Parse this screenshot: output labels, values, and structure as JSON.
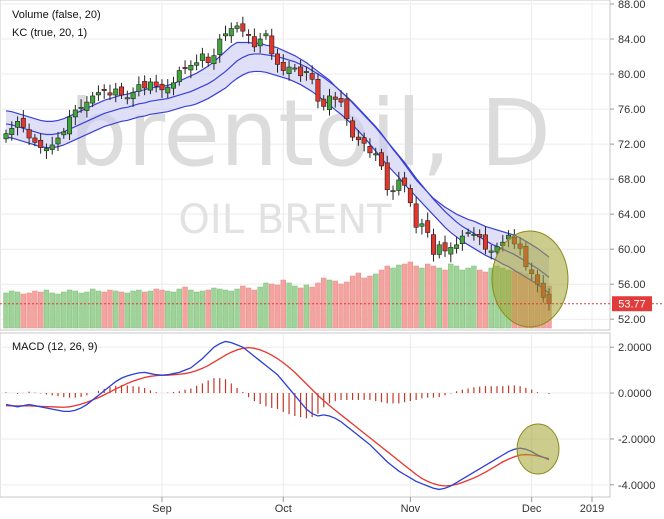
{
  "chart_data": [
    {
      "type": "candlestick",
      "watermark": {
        "symbol": "brentoil, D",
        "name": "OIL BRENT"
      },
      "legend": [
        "Volume (false, 20)",
        "KC (true, 20, 1)"
      ],
      "ylim": [
        51,
        88
      ],
      "y_ticks": [
        52,
        56,
        60,
        64,
        68,
        72,
        76,
        80,
        84,
        88
      ],
      "y_tick_labels": [
        "52.00",
        "56.00",
        "60.00",
        "64.00",
        "68.00",
        "72.00",
        "76.00",
        "80.00",
        "84.00",
        "88.00"
      ],
      "last_price": "53.77",
      "x_labels": [
        "Sep",
        "Oct",
        "Nov",
        "Dec",
        "2019"
      ],
      "close": [
        73.2,
        73.8,
        74.6,
        73.9,
        72.7,
        72.2,
        71.6,
        71.5,
        71.9,
        72.7,
        73.4,
        75.1,
        75.9,
        76.2,
        76.8,
        77.5,
        77.9,
        78.1,
        77.6,
        78.3,
        77.6,
        77.3,
        77.9,
        78.8,
        78.4,
        79.1,
        78.6,
        78.2,
        78.5,
        79.0,
        80.4,
        80.7,
        81.0,
        81.3,
        82.3,
        81.3,
        82.1,
        84.0,
        84.6,
        85.2,
        85.5,
        84.9,
        84.4,
        83.1,
        84.0,
        84.6,
        82.3,
        81.1,
        80.4,
        80.8,
        80.7,
        79.8,
        80.3,
        79.4,
        76.9,
        76.3,
        77.5,
        77.1,
        76.8,
        74.9,
        72.8,
        72.5,
        72.1,
        71.0,
        70.9,
        69.5,
        66.8,
        66.7,
        67.9,
        67.3,
        65.3,
        62.5,
        62.9,
        61.9,
        59.4,
        60.5,
        59.8,
        60.2,
        60.5,
        61.5,
        61.9,
        61.7,
        61.4,
        60.0,
        59.8,
        60.3,
        60.8,
        61.6,
        60.6,
        60.1,
        58.0,
        57.2,
        56.0,
        54.5,
        53.77
      ],
      "volume_levels": [
        0.35,
        0.37,
        0.36,
        0.34,
        0.35,
        0.37,
        0.36,
        0.38,
        0.35,
        0.34,
        0.36,
        0.38,
        0.37,
        0.35,
        0.36,
        0.39,
        0.37,
        0.36,
        0.38,
        0.37,
        0.36,
        0.35,
        0.37,
        0.38,
        0.36,
        0.37,
        0.39,
        0.38,
        0.37,
        0.36,
        0.39,
        0.41,
        0.38,
        0.36,
        0.37,
        0.38,
        0.4,
        0.39,
        0.38,
        0.37,
        0.39,
        0.42,
        0.4,
        0.38,
        0.41,
        0.45,
        0.44,
        0.43,
        0.48,
        0.45,
        0.42,
        0.4,
        0.43,
        0.41,
        0.45,
        0.5,
        0.48,
        0.47,
        0.44,
        0.46,
        0.52,
        0.55,
        0.5,
        0.52,
        0.54,
        0.58,
        0.62,
        0.6,
        0.63,
        0.64,
        0.66,
        0.62,
        0.6,
        0.64,
        0.62,
        0.6,
        0.58,
        0.64,
        0.62,
        0.58,
        0.6,
        0.62,
        0.58,
        0.56,
        0.6,
        0.62,
        0.6,
        0.58,
        0.57,
        0.56,
        0.54,
        0.5,
        0.47,
        0.45,
        0.42
      ],
      "kc_mid": [
        74.3,
        74.2,
        74.0,
        73.8,
        73.6,
        73.4,
        73.2,
        73.1,
        73.1,
        73.2,
        73.4,
        73.7,
        74.0,
        74.3,
        74.6,
        74.9,
        75.2,
        75.5,
        75.7,
        75.9,
        76.1,
        76.2,
        76.4,
        76.6,
        76.7,
        76.9,
        77.0,
        77.1,
        77.2,
        77.4,
        77.6,
        77.8,
        78.0,
        78.3,
        78.6,
        78.9,
        79.3,
        79.8,
        80.3,
        80.9,
        81.5,
        81.9,
        82.2,
        82.3,
        82.3,
        82.2,
        82.1,
        82.0,
        81.8,
        81.6,
        81.4,
        81.1,
        80.8,
        80.4,
        80.0,
        79.6,
        79.1,
        78.6,
        78.0,
        77.4,
        76.7,
        76.0,
        75.3,
        74.6,
        73.9,
        73.1,
        72.3,
        71.5,
        70.7,
        69.9,
        69.0,
        68.1,
        67.3,
        66.5,
        65.7,
        65.0,
        64.3,
        63.7,
        63.1,
        62.6,
        62.2,
        61.8,
        61.4,
        61.0,
        60.6,
        60.3,
        60.0,
        59.7,
        59.4,
        59.0,
        58.6,
        58.2,
        57.8,
        57.3,
        56.8
      ],
      "kc_upper": [
        75.8,
        75.7,
        75.5,
        75.3,
        75.1,
        74.9,
        74.7,
        74.6,
        74.6,
        74.7,
        74.9,
        75.2,
        75.5,
        75.8,
        76.1,
        76.4,
        76.7,
        77.0,
        77.2,
        77.4,
        77.6,
        77.7,
        77.9,
        78.1,
        78.2,
        78.4,
        78.5,
        78.6,
        78.7,
        78.9,
        79.2,
        79.5,
        79.8,
        80.1,
        80.5,
        80.9,
        81.4,
        82.0,
        82.6,
        83.2,
        83.6,
        83.6,
        83.6,
        83.5,
        83.5,
        83.3,
        83.2,
        83.0,
        82.7,
        82.4,
        82.1,
        81.7,
        81.3,
        80.8,
        80.3,
        79.8,
        79.3,
        78.6,
        78.0,
        77.4,
        76.8,
        76.1,
        75.4,
        74.7,
        74.0,
        73.2,
        72.3,
        71.4,
        70.6,
        69.7,
        68.8,
        67.9,
        67.2,
        66.5,
        65.8,
        65.3,
        64.8,
        64.4,
        64.0,
        63.7,
        63.4,
        63.2,
        62.9,
        62.6,
        62.4,
        62.2,
        62.0,
        61.8,
        61.6,
        61.3,
        60.9,
        60.5,
        60.1,
        59.6,
        59.1
      ],
      "kc_lower": [
        72.8,
        72.7,
        72.5,
        72.3,
        72.1,
        71.9,
        71.7,
        71.6,
        71.6,
        71.7,
        71.9,
        72.2,
        72.5,
        72.8,
        73.1,
        73.4,
        73.7,
        74.0,
        74.2,
        74.4,
        74.6,
        74.7,
        74.9,
        75.1,
        75.2,
        75.4,
        75.5,
        75.6,
        75.7,
        75.9,
        76.1,
        76.3,
        76.4,
        76.6,
        76.9,
        77.2,
        77.6,
        78.0,
        78.4,
        79.0,
        79.5,
        79.9,
        80.2,
        80.3,
        80.3,
        80.2,
        80.0,
        79.8,
        79.6,
        79.4,
        79.1,
        78.8,
        78.4,
        78.0,
        77.5,
        77.0,
        76.5,
        75.9,
        75.4,
        74.8,
        74.2,
        73.5,
        72.8,
        72.0,
        71.2,
        70.4,
        69.6,
        68.9,
        68.2,
        67.4,
        66.7,
        66.0,
        65.3,
        64.6,
        63.9,
        63.2,
        62.5,
        61.9,
        61.4,
        60.9,
        60.5,
        60.1,
        59.7,
        59.3,
        59.0,
        58.7,
        58.3,
        58.0,
        57.6,
        57.2,
        56.8,
        56.4,
        56.0,
        55.5,
        55.0
      ]
    },
    {
      "type": "macd",
      "legend": "MACD (12, 26, 9)",
      "ylim": [
        -4.4,
        2.4
      ],
      "y_ticks": [
        2,
        0,
        -2,
        -4
      ],
      "y_tick_labels": [
        "2.0000",
        "0.0000",
        "-2.0000",
        "-4.0000"
      ],
      "x_labels": [
        "Sep",
        "Oct",
        "Nov",
        "Dec",
        "2019"
      ],
      "macd": [
        -0.5,
        -0.55,
        -0.6,
        -0.55,
        -0.5,
        -0.55,
        -0.6,
        -0.65,
        -0.7,
        -0.75,
        -0.8,
        -0.8,
        -0.75,
        -0.65,
        -0.5,
        -0.3,
        -0.1,
        0.1,
        0.3,
        0.5,
        0.65,
        0.75,
        0.82,
        0.88,
        0.9,
        0.85,
        0.8,
        0.78,
        0.8,
        0.85,
        0.9,
        1.0,
        1.1,
        1.3,
        1.5,
        1.75,
        2.0,
        2.15,
        2.25,
        2.2,
        2.1,
        2.0,
        1.8,
        1.6,
        1.4,
        1.2,
        1.0,
        0.8,
        0.5,
        0.2,
        -0.1,
        -0.4,
        -0.7,
        -0.9,
        -1.0,
        -0.95,
        -1.0,
        -1.1,
        -1.25,
        -1.45,
        -1.65,
        -1.85,
        -2.05,
        -2.25,
        -2.5,
        -2.75,
        -3.0,
        -3.2,
        -3.4,
        -3.55,
        -3.7,
        -3.85,
        -3.95,
        -4.05,
        -4.15,
        -4.2,
        -4.15,
        -4.05,
        -3.9,
        -3.75,
        -3.6,
        -3.45,
        -3.3,
        -3.15,
        -3.0,
        -2.85,
        -2.7,
        -2.55,
        -2.45,
        -2.4,
        -2.45,
        -2.55,
        -2.7,
        -2.8,
        -2.9
      ],
      "signal": [
        -0.55,
        -0.56,
        -0.56,
        -0.56,
        -0.56,
        -0.57,
        -0.58,
        -0.59,
        -0.6,
        -0.61,
        -0.62,
        -0.6,
        -0.55,
        -0.48,
        -0.4,
        -0.3,
        -0.2,
        -0.08,
        0.05,
        0.18,
        0.3,
        0.42,
        0.52,
        0.6,
        0.68,
        0.73,
        0.76,
        0.78,
        0.78,
        0.8,
        0.82,
        0.85,
        0.9,
        0.98,
        1.08,
        1.2,
        1.35,
        1.5,
        1.65,
        1.78,
        1.88,
        1.95,
        1.98,
        1.95,
        1.88,
        1.78,
        1.65,
        1.5,
        1.32,
        1.12,
        0.9,
        0.65,
        0.4,
        0.15,
        -0.1,
        -0.33,
        -0.55,
        -0.75,
        -0.95,
        -1.15,
        -1.35,
        -1.55,
        -1.75,
        -1.95,
        -2.15,
        -2.35,
        -2.55,
        -2.75,
        -2.95,
        -3.15,
        -3.35,
        -3.55,
        -3.72,
        -3.85,
        -3.95,
        -4.02,
        -4.05,
        -4.03,
        -3.98,
        -3.9,
        -3.8,
        -3.7,
        -3.58,
        -3.45,
        -3.3,
        -3.15,
        -3.0,
        -2.88,
        -2.78,
        -2.7,
        -2.68,
        -2.7,
        -2.74,
        -2.8,
        -2.86
      ],
      "histogram": [
        0.03,
        0.0,
        -0.04,
        0.01,
        0.06,
        0.02,
        -0.02,
        -0.06,
        -0.1,
        -0.14,
        -0.18,
        -0.2,
        -0.2,
        -0.17,
        -0.1,
        0.0,
        0.1,
        0.18,
        0.25,
        0.32,
        0.35,
        0.33,
        0.3,
        0.28,
        0.22,
        0.12,
        0.04,
        0.0,
        0.02,
        0.05,
        0.08,
        0.15,
        0.2,
        0.32,
        0.42,
        0.55,
        0.65,
        0.65,
        0.6,
        0.42,
        0.22,
        0.05,
        -0.18,
        -0.35,
        -0.48,
        -0.58,
        -0.65,
        -0.7,
        -0.82,
        -0.92,
        -1.0,
        -1.05,
        -1.1,
        -1.05,
        -0.9,
        -0.62,
        -0.45,
        -0.35,
        -0.3,
        -0.3,
        -0.3,
        -0.3,
        -0.3,
        -0.3,
        -0.35,
        -0.4,
        -0.45,
        -0.45,
        -0.45,
        -0.4,
        -0.35,
        -0.3,
        -0.23,
        -0.2,
        -0.2,
        -0.18,
        -0.1,
        -0.02,
        0.08,
        0.15,
        0.2,
        0.25,
        0.28,
        0.3,
        0.3,
        0.3,
        0.3,
        0.33,
        0.33,
        0.3,
        0.23,
        0.15,
        0.04,
        -0.0,
        -0.04
      ]
    }
  ]
}
